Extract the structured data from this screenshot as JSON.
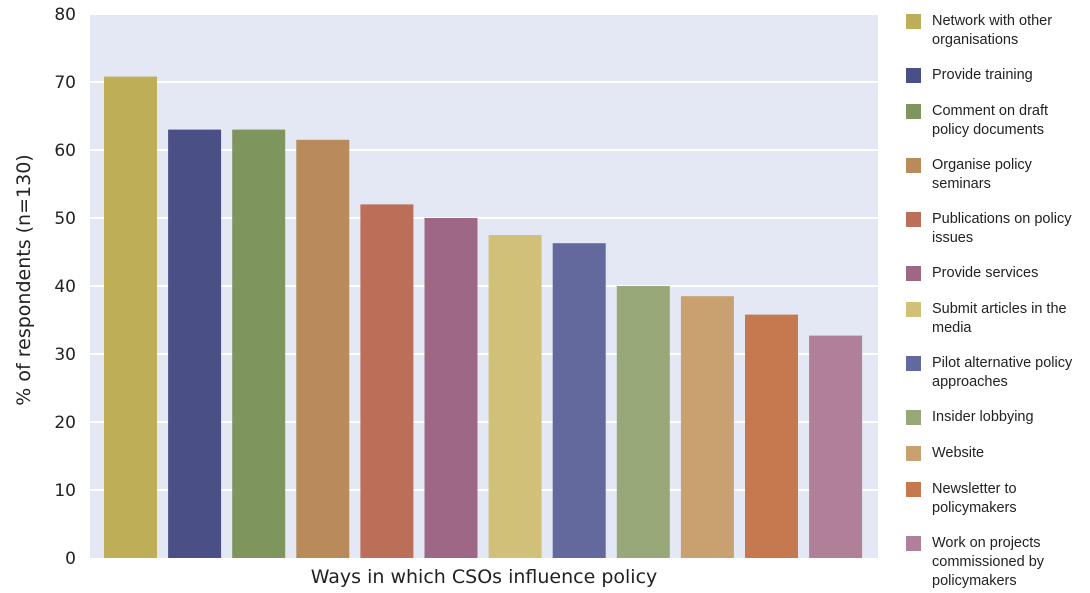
{
  "chart_data": {
    "type": "bar",
    "title": "",
    "xlabel": "Ways in which CSOs influence policy",
    "ylabel": "% of respondents (n=130)",
    "ylim": [
      0,
      80
    ],
    "yticks": [
      0,
      10,
      20,
      30,
      40,
      50,
      60,
      70,
      80
    ],
    "grid": true,
    "legend_position": "right",
    "categories": [
      "Network with other organisations",
      "Provide training",
      "Comment on draft policy documents",
      "Organise policy seminars",
      "Publications on policy issues",
      "Provide services",
      "Submit articles in the media",
      "Pilot alternative policy approaches",
      "Insider lobbying",
      "Website",
      "Newsletter to policymakers",
      "Work on projects commissioned by policymakers"
    ],
    "values": [
      70.8,
      63,
      63,
      61.5,
      52,
      50,
      47.5,
      46.3,
      40,
      38.5,
      35.8,
      32.7
    ],
    "colors": [
      "#bfae58",
      "#4a5085",
      "#7e955d",
      "#b98b5a",
      "#bb6e58",
      "#9e6785",
      "#d1c178",
      "#63699d",
      "#98a878",
      "#c9a070",
      "#c6784e",
      "#b08099"
    ],
    "plot_background": "#e3e8f4",
    "gridline_color": "#ffffff"
  }
}
